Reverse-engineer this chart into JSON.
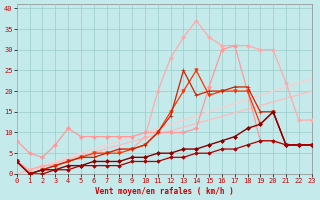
{
  "xlabel": "Vent moyen/en rafales ( km/h )",
  "xlim": [
    0,
    23
  ],
  "ylim": [
    0,
    41
  ],
  "yticks": [
    0,
    5,
    10,
    15,
    20,
    25,
    30,
    35,
    40
  ],
  "xticks": [
    0,
    1,
    2,
    3,
    4,
    5,
    6,
    7,
    8,
    9,
    10,
    11,
    12,
    13,
    14,
    15,
    16,
    17,
    18,
    19,
    20,
    21,
    22,
    23
  ],
  "background_color": "#c5eaec",
  "grid_color": "#99ccca",
  "series": [
    {
      "x": [
        0,
        23
      ],
      "y": [
        0,
        23
      ],
      "color": "#ffcccc",
      "lw": 0.9,
      "marker": null,
      "ms": 0
    },
    {
      "x": [
        0,
        23
      ],
      "y": [
        0,
        20
      ],
      "color": "#ffbbbb",
      "lw": 0.9,
      "marker": null,
      "ms": 0
    },
    {
      "x": [
        0,
        1,
        2,
        3,
        4,
        5,
        6,
        7,
        8,
        9,
        10,
        11,
        12,
        13,
        14,
        15,
        16,
        17,
        18,
        19,
        20,
        21,
        22,
        23
      ],
      "y": [
        3,
        1,
        2,
        2,
        3,
        4,
        5,
        5,
        6,
        6,
        9,
        20,
        28,
        33,
        37,
        33,
        31,
        31,
        31,
        30,
        30,
        22,
        13,
        13
      ],
      "color": "#ffaaaa",
      "lw": 0.9,
      "marker": "D",
      "ms": 2.0
    },
    {
      "x": [
        0,
        1,
        2,
        3,
        4,
        5,
        6,
        7,
        8,
        9,
        10,
        11,
        12,
        13,
        14,
        15,
        16,
        17,
        18,
        19,
        20,
        21,
        22,
        23
      ],
      "y": [
        8,
        5,
        4,
        7,
        11,
        9,
        9,
        9,
        9,
        9,
        10,
        10,
        10,
        10,
        11,
        21,
        30,
        31,
        20,
        8,
        8,
        7,
        7,
        7
      ],
      "color": "#ff9999",
      "lw": 0.9,
      "marker": "D",
      "ms": 2.0
    },
    {
      "x": [
        0,
        1,
        2,
        3,
        4,
        5,
        6,
        7,
        8,
        9,
        10,
        11,
        12,
        13,
        14,
        15,
        16,
        17,
        18,
        19,
        20,
        21,
        22,
        23
      ],
      "y": [
        3,
        0,
        1,
        2,
        3,
        4,
        5,
        5,
        5,
        6,
        7,
        10,
        15,
        20,
        25,
        19,
        20,
        20,
        20,
        12,
        15,
        7,
        7,
        7
      ],
      "color": "#ff3300",
      "lw": 0.9,
      "marker": "v",
      "ms": 2.5
    },
    {
      "x": [
        0,
        1,
        2,
        3,
        4,
        5,
        6,
        7,
        8,
        9,
        10,
        11,
        12,
        13,
        14,
        15,
        16,
        17,
        18,
        19,
        20,
        21,
        22,
        23
      ],
      "y": [
        3,
        0,
        1,
        2,
        3,
        4,
        4,
        5,
        6,
        6,
        7,
        10,
        14,
        25,
        19,
        20,
        20,
        21,
        21,
        15,
        15,
        7,
        7,
        7
      ],
      "color": "#cc2200",
      "lw": 0.9,
      "marker": "+",
      "ms": 3.5
    },
    {
      "x": [
        0,
        1,
        2,
        3,
        4,
        5,
        6,
        7,
        8,
        9,
        10,
        11,
        12,
        13,
        14,
        15,
        16,
        17,
        18,
        19,
        20,
        21,
        22,
        23
      ],
      "y": [
        3,
        0,
        1,
        1,
        2,
        2,
        3,
        3,
        3,
        4,
        4,
        5,
        5,
        6,
        6,
        7,
        8,
        9,
        11,
        12,
        15,
        7,
        7,
        7
      ],
      "color": "#880000",
      "lw": 1.0,
      "marker": "D",
      "ms": 2.0
    },
    {
      "x": [
        0,
        1,
        2,
        3,
        4,
        5,
        6,
        7,
        8,
        9,
        10,
        11,
        12,
        13,
        14,
        15,
        16,
        17,
        18,
        19,
        20,
        21,
        22,
        23
      ],
      "y": [
        3,
        0,
        0,
        1,
        1,
        2,
        2,
        2,
        2,
        3,
        3,
        3,
        4,
        4,
        5,
        5,
        6,
        6,
        7,
        8,
        8,
        7,
        7,
        7
      ],
      "color": "#aa0000",
      "lw": 0.9,
      "marker": "D",
      "ms": 1.8
    }
  ]
}
